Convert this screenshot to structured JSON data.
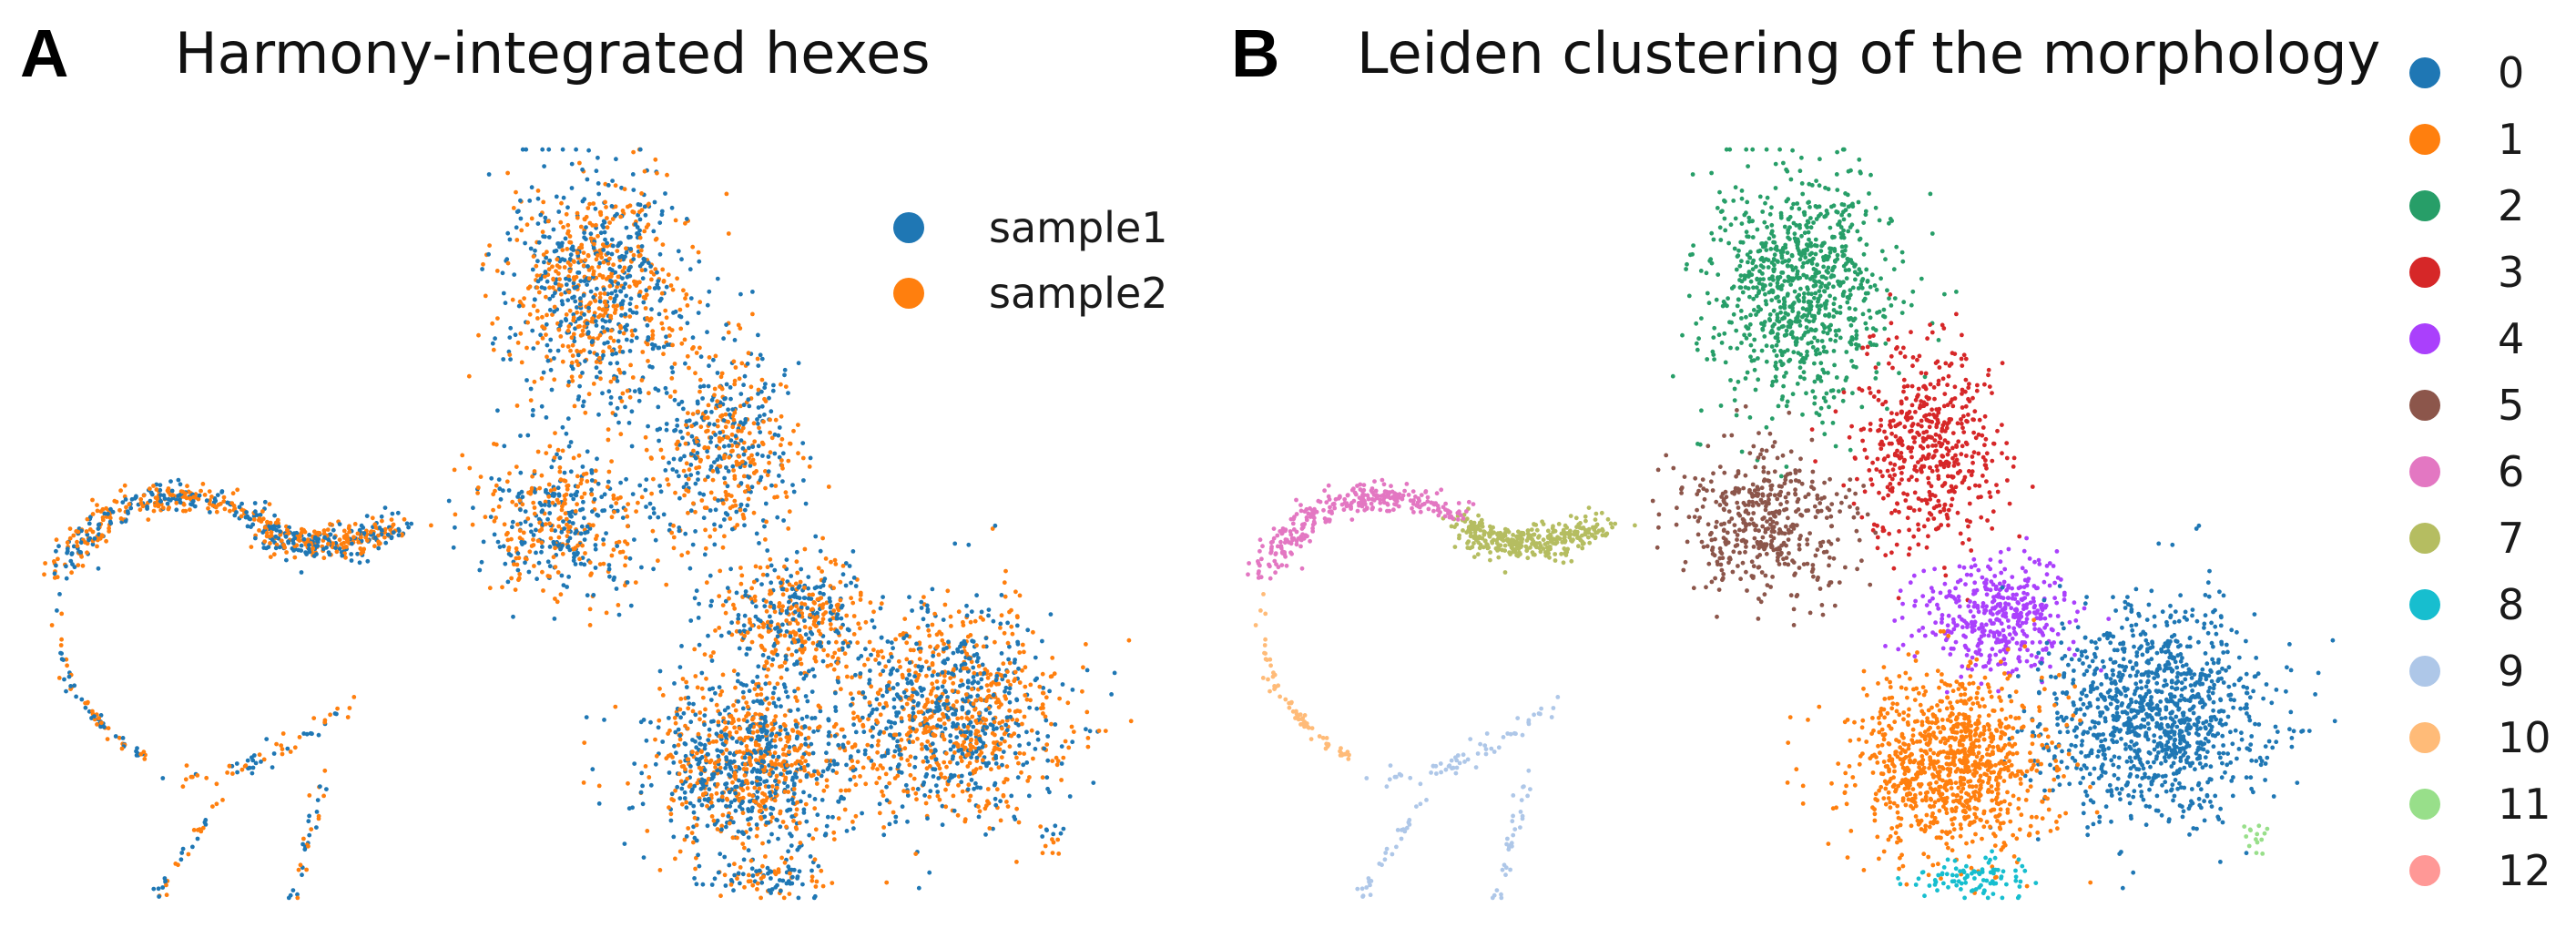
{
  "chart_data": [
    {
      "type": "scatter",
      "panel_label": "A",
      "title": "Harmony-integrated hexes",
      "xlabel": "",
      "ylabel": "",
      "grid": false,
      "axes_visible": false,
      "legend_position": "top-right",
      "series": [
        {
          "name": "sample1",
          "color": "#1f77b4"
        },
        {
          "name": "sample2",
          "color": "#ff7f0e"
        }
      ]
    },
    {
      "type": "scatter",
      "panel_label": "B",
      "title": "Leiden clustering of the morphology",
      "xlabel": "",
      "ylabel": "",
      "grid": false,
      "axes_visible": false,
      "legend_position": "right",
      "series": [
        {
          "name": "0",
          "color": "#1f77b4"
        },
        {
          "name": "1",
          "color": "#ff7f0e"
        },
        {
          "name": "2",
          "color": "#279e68"
        },
        {
          "name": "3",
          "color": "#d62728"
        },
        {
          "name": "4",
          "color": "#aa40fc"
        },
        {
          "name": "5",
          "color": "#8c564b"
        },
        {
          "name": "6",
          "color": "#e377c2"
        },
        {
          "name": "7",
          "color": "#b5bd61"
        },
        {
          "name": "8",
          "color": "#17becf"
        },
        {
          "name": "9",
          "color": "#aec7e8"
        },
        {
          "name": "10",
          "color": "#ffbb78"
        },
        {
          "name": "11",
          "color": "#98df8a"
        },
        {
          "name": "12",
          "color": "#ff9896"
        }
      ]
    }
  ]
}
